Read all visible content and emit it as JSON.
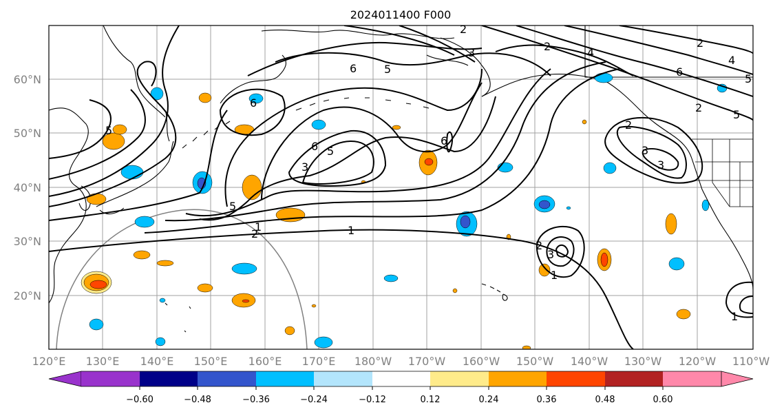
{
  "title": "2024011400 F000",
  "lat_labels": [
    "60°N",
    "50°N",
    "40°N",
    "30°N",
    "20°N"
  ],
  "lon_labels": [
    "120°E",
    "130°E",
    "140°E",
    "150°E",
    "160°E",
    "170°E",
    "180°W",
    "170°W",
    "160°W",
    "150°W",
    "140°W",
    "130°W",
    "120°W",
    "110°W"
  ],
  "colorbar": {
    "colors": [
      "#9933cc",
      "#000088",
      "#3355cc",
      "#00bfff",
      "#b3e5fc",
      "#ffffff",
      "#ffeb8a",
      "#ffa500",
      "#ff4500",
      "#b22222",
      "#ff88aa"
    ],
    "tick_labels": [
      "−0.60",
      "−0.48",
      "−0.36",
      "−0.24",
      "−0.12",
      "0.12",
      "0.24",
      "0.36",
      "0.48",
      "0.60"
    ]
  },
  "contour_labels": [
    "1",
    "2",
    "3",
    "5",
    "6",
    "5",
    "6",
    "5",
    "4",
    "2",
    "3",
    "2",
    "1",
    "2",
    "3",
    "6",
    "2",
    "3",
    "1",
    "2",
    "4",
    "5",
    "6",
    "2",
    "3",
    "1",
    "5",
    "6",
    "5"
  ]
}
